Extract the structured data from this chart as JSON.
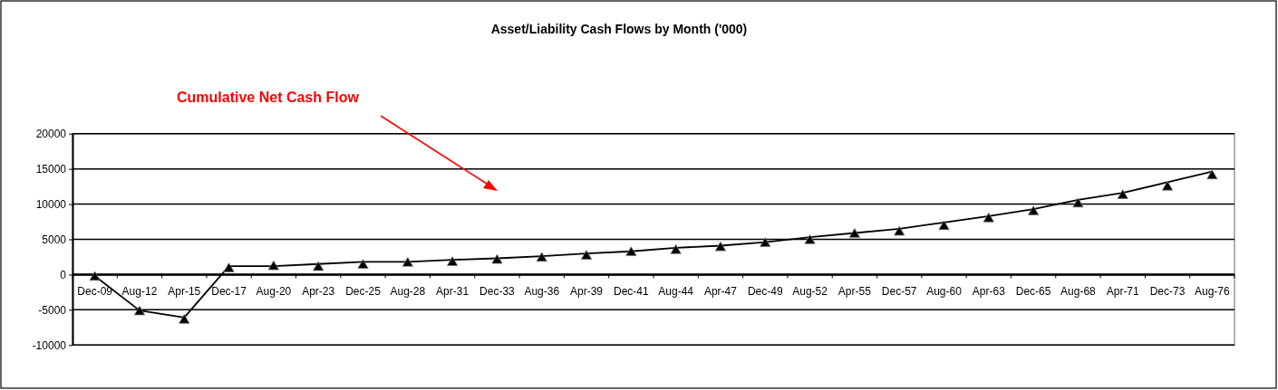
{
  "chart_data": {
    "type": "line",
    "title": "Asset/Liability Cash Flows by Month ('000)",
    "annotations": [
      "Cumulative Net Cash Flow"
    ],
    "categories": [
      "Dec-09",
      "Aug-12",
      "Apr-15",
      "Dec-17",
      "Aug-20",
      "Apr-23",
      "Dec-25",
      "Aug-28",
      "Apr-31",
      "Dec-33",
      "Aug-36",
      "Apr-39",
      "Dec-41",
      "Aug-44",
      "Apr-47",
      "Dec-49",
      "Aug-52",
      "Apr-55",
      "Dec-57",
      "Aug-60",
      "Apr-63",
      "Dec-65",
      "Aug-68",
      "Apr-71",
      "Dec-73",
      "Aug-76"
    ],
    "series": [
      {
        "color": "#000000",
        "marker": "none",
        "values": [
          -200,
          -5100,
          -6100,
          1200,
          1200,
          1500,
          1800,
          1800,
          2100,
          2300,
          2600,
          3000,
          3300,
          3800,
          4100,
          4600,
          5300,
          5900,
          6500,
          7400,
          8300,
          9300,
          10600,
          11600,
          13100,
          14600
        ]
      },
      {
        "type": "scatter",
        "color": "#000000",
        "marker": "triangle",
        "values": [
          -400,
          -5300,
          -6500,
          800,
          1100,
          1000,
          1300,
          1600,
          1700,
          2000,
          2300,
          2600,
          3100,
          3400,
          3800,
          4400,
          4800,
          5700,
          6000,
          6800,
          7900,
          8900,
          10000,
          11200,
          12400,
          14000
        ]
      }
    ],
    "ylim": [
      -10000,
      20000
    ],
    "yticks": [
      -10000,
      -5000,
      0,
      5000,
      10000,
      15000,
      20000
    ],
    "grid": "y",
    "line_style": "solid"
  }
}
